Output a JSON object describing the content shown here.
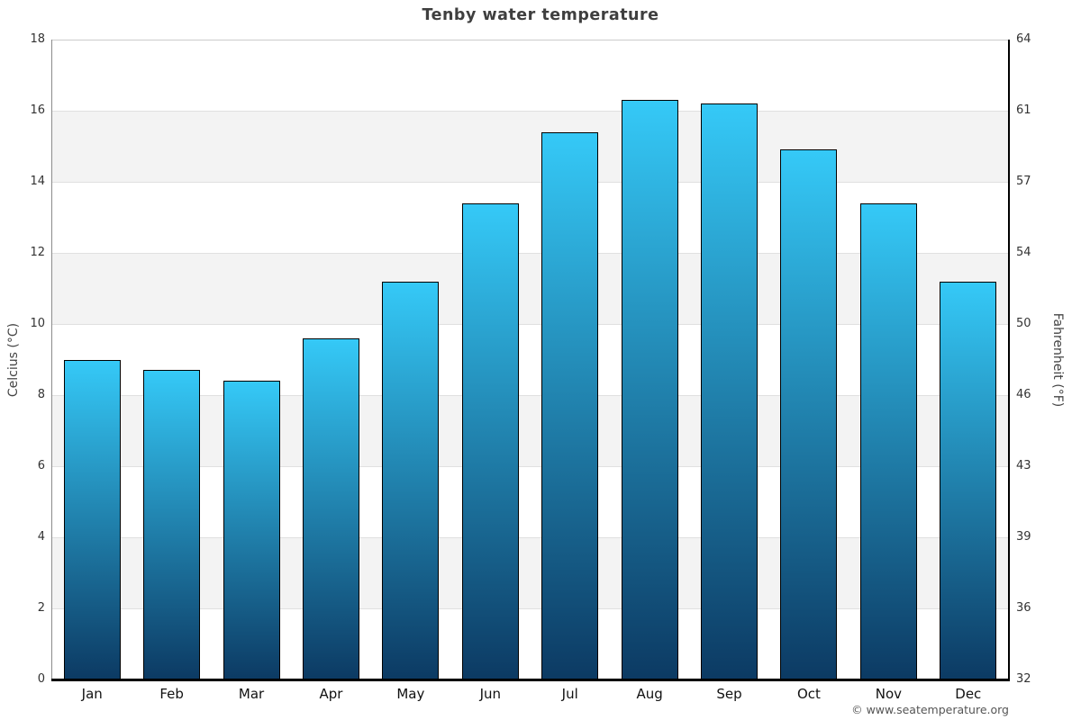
{
  "chart_data": {
    "type": "bar",
    "title": "Tenby water temperature",
    "categories": [
      "Jan",
      "Feb",
      "Mar",
      "Apr",
      "May",
      "Jun",
      "Jul",
      "Aug",
      "Sep",
      "Oct",
      "Nov",
      "Dec"
    ],
    "values": [
      9.0,
      8.7,
      8.4,
      9.6,
      11.2,
      13.4,
      15.4,
      16.3,
      16.2,
      14.9,
      13.4,
      11.2
    ],
    "ylabel_left": "Celcius (°C)",
    "ylabel_right": "Fahrenheit (°F)",
    "yticks_celsius": [
      0,
      2,
      4,
      6,
      8,
      10,
      12,
      14,
      16,
      18
    ],
    "yticks_fahrenheit": [
      32,
      36,
      39,
      43,
      46,
      50,
      54,
      57,
      61,
      64
    ],
    "ylim": [
      0,
      18
    ],
    "grid": "alternating-horizontal-bands",
    "band_ranges": [
      [
        2,
        4
      ],
      [
        6,
        8
      ],
      [
        10,
        12
      ],
      [
        14,
        16
      ]
    ],
    "legend": "none",
    "colors": {
      "bar_gradient_top": "#35c9f7",
      "bar_gradient_bottom": "#0c3a63",
      "bar_border": "#000000",
      "band": "#f3f3f3",
      "gridline": "#e0e0e0",
      "title_text": "#3f3f3f",
      "tick_text": "#333333",
      "copyright_text": "#555555"
    }
  },
  "footer": {
    "copyright": "© www.seatemperature.org"
  }
}
